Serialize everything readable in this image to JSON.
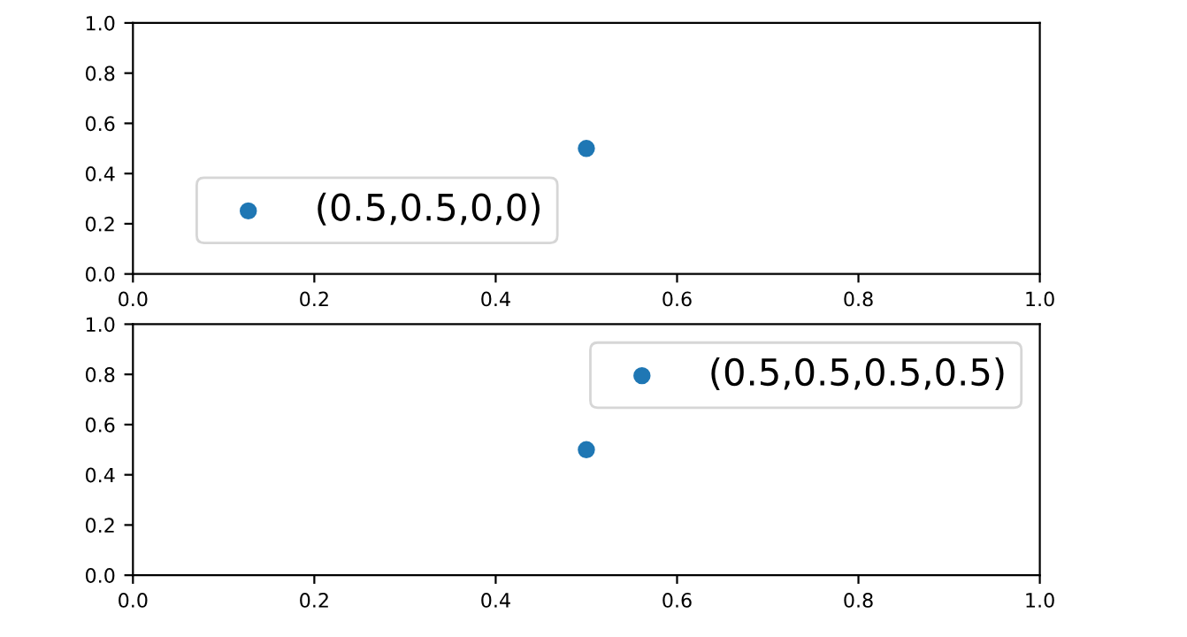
{
  "chart_data": [
    {
      "type": "scatter",
      "x": [
        0.5
      ],
      "series": [
        {
          "name": "(0.5,0.5,0,0)",
          "color": "#1f77b4",
          "values": [
            0.5
          ]
        }
      ],
      "xlim": [
        0,
        1
      ],
      "ylim": [
        0,
        1
      ],
      "xticks": [
        {
          "value": 0,
          "label": "0.0"
        },
        {
          "value": 0.2,
          "label": "0.2"
        },
        {
          "value": 0.4,
          "label": "0.4"
        },
        {
          "value": 0.6,
          "label": "0.6"
        },
        {
          "value": 0.8,
          "label": "0.8"
        },
        {
          "value": 1,
          "label": "1.0"
        }
      ],
      "yticks": [
        {
          "value": 0,
          "label": "0.0"
        },
        {
          "value": 0.2,
          "label": "0.2"
        },
        {
          "value": 0.4,
          "label": "0.4"
        },
        {
          "value": 0.6,
          "label": "0.6"
        },
        {
          "value": 0.8,
          "label": "0.8"
        },
        {
          "value": 1,
          "label": "1.0"
        }
      ],
      "legend": "bottom left",
      "marker": "circle",
      "grid": false
    },
    {
      "type": "scatter",
      "x": [
        0.5
      ],
      "series": [
        {
          "name": "(0.5,0.5,0.5,0.5)",
          "color": "#1f77b4",
          "values": [
            0.5
          ]
        }
      ],
      "xlim": [
        0,
        1
      ],
      "ylim": [
        0,
        1
      ],
      "xticks": [
        {
          "value": 0,
          "label": "0.0"
        },
        {
          "value": 0.2,
          "label": "0.2"
        },
        {
          "value": 0.4,
          "label": "0.4"
        },
        {
          "value": 0.6,
          "label": "0.6"
        },
        {
          "value": 0.8,
          "label": "0.8"
        },
        {
          "value": 1,
          "label": "1.0"
        }
      ],
      "yticks": [
        {
          "value": 0,
          "label": "0.0"
        },
        {
          "value": 0.2,
          "label": "0.2"
        },
        {
          "value": 0.4,
          "label": "0.4"
        },
        {
          "value": 0.6,
          "label": "0.6"
        },
        {
          "value": 0.8,
          "label": "0.8"
        },
        {
          "value": 1,
          "label": "1.0"
        }
      ],
      "legend": "top right",
      "marker": "circle",
      "grid": false
    }
  ]
}
